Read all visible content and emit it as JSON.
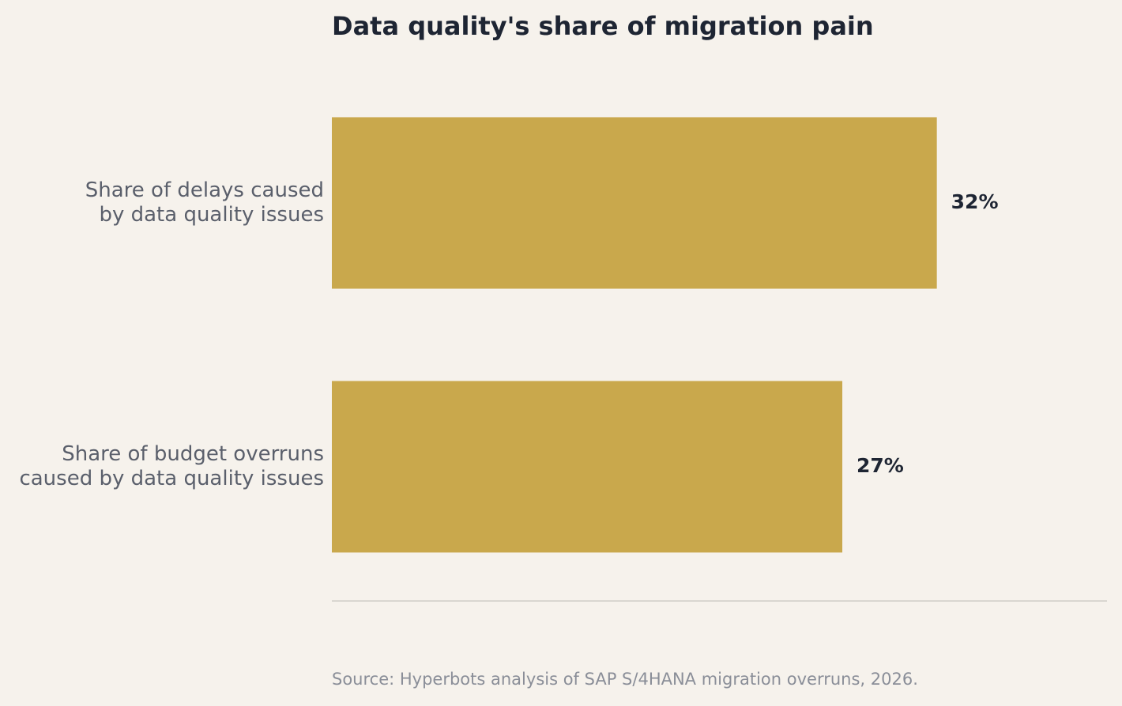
{
  "chart_data": {
    "type": "bar",
    "orientation": "horizontal",
    "title": "Data quality's share of migration pain",
    "categories": [
      [
        "Share of delays caused",
        "by data quality issues"
      ],
      [
        "Share of budget overruns",
        "caused by data quality issues"
      ]
    ],
    "values": [
      32,
      27
    ],
    "value_labels": [
      "32%",
      "27%"
    ],
    "xlim": [
      0,
      41
    ],
    "grid": false,
    "legend": "none",
    "bar_color": "#c9a84c",
    "source": "Source: Hyperbots analysis of SAP S/4HANA migration overruns, 2026."
  }
}
